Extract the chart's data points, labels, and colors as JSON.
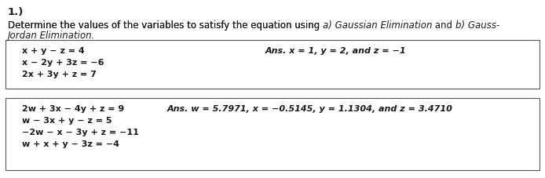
{
  "title": "1.)",
  "eq1_lines": [
    "x + y − z = 4",
    "x − 2y + 3z = −6",
    "2x + 3y + z = 7"
  ],
  "ans1": "Ans. x = 1, y = 2, and z = −1",
  "eq2_lines": [
    "2w + 3x − 4y + z = 9",
    "w − 3x + y − z = 5",
    "−2w − x − 3y + z = −11",
    "w + x + y − 3z = −4"
  ],
  "ans2": "Ans. w = 5.7971, x = −0.5145, y = 1.1304, and z = 3.4710",
  "desc_pre": "Determine the values of the variables to satisfy the equation using ",
  "desc_it1": "a) Gaussian Elimination",
  "desc_mid": " and ",
  "desc_it2": "b) Gauss-",
  "desc_it3": "Jordan Elimination.",
  "bg_color": "#ffffff",
  "text_color": "#1a1a1a",
  "box_color": "#555555",
  "title_fontsize": 9.5,
  "body_fontsize": 8.5,
  "eq_fontsize": 8.0,
  "ans_fontsize": 8.0
}
